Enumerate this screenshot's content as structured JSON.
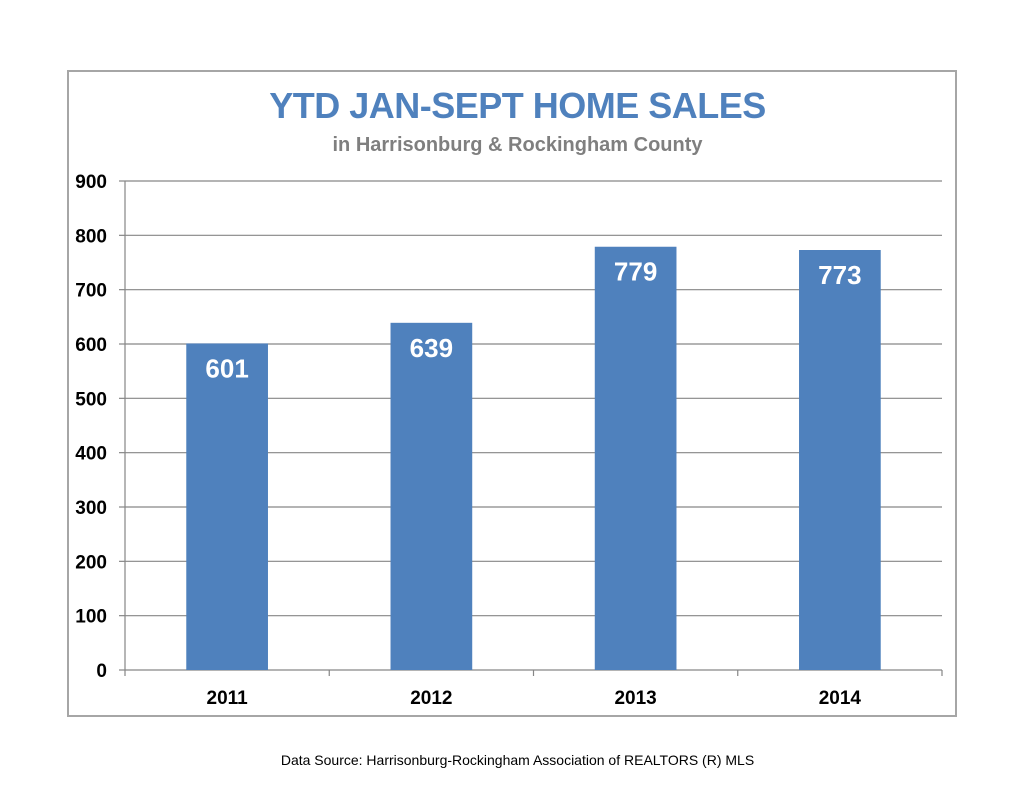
{
  "chart_data": {
    "type": "bar",
    "title": "YTD JAN-SEPT HOME SALES",
    "subtitle": "in Harrisonburg & Rockingham County",
    "categories": [
      "2011",
      "2012",
      "2013",
      "2014"
    ],
    "values": [
      601,
      639,
      779,
      773
    ],
    "data_labels": [
      "601",
      "639",
      "779",
      "773"
    ],
    "ylim": [
      0,
      900
    ],
    "yticks": [
      0,
      100,
      200,
      300,
      400,
      500,
      600,
      700,
      800,
      900
    ],
    "ytick_labels": [
      "0",
      "100",
      "200",
      "300",
      "400",
      "500",
      "600",
      "700",
      "800",
      "900"
    ],
    "grid": true,
    "legend": "none",
    "bar_color": "#4f81bd",
    "title_color": "#4f81bd",
    "subtitle_color": "#7f7f7f",
    "gridline_color": "#868686",
    "data_label_color": "#ffffff"
  },
  "footer": {
    "source": "Data Source: Harrisonburg-Rockingham Association of REALTORS (R) MLS"
  }
}
